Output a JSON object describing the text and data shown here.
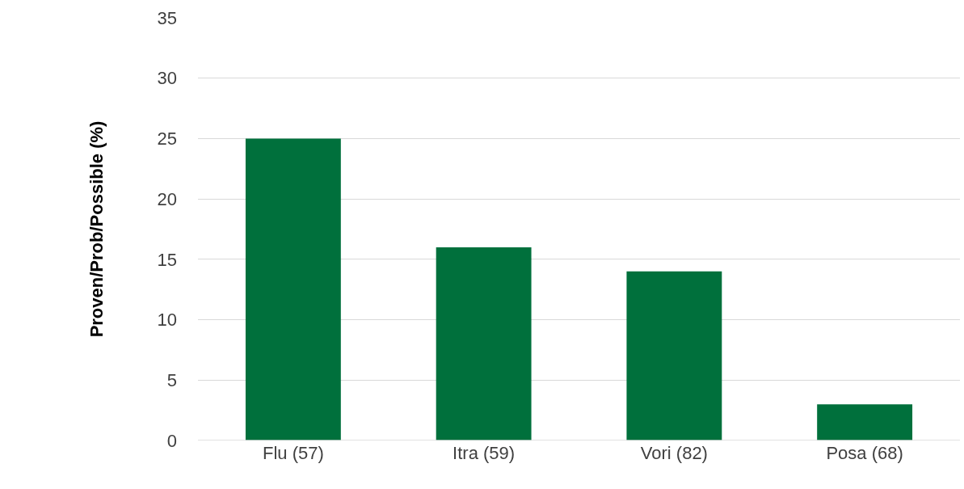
{
  "chart_data": {
    "type": "bar",
    "ylabel": "Proven/Prob/Possible (%)",
    "categories": [
      "Flu (57)",
      "Itra (59)",
      "Vori (82)",
      "Posa (68)"
    ],
    "values": [
      25,
      16,
      14,
      3
    ],
    "color": "#00703c",
    "ylim": [
      0,
      35
    ],
    "yticks": [
      0,
      5,
      10,
      15,
      20,
      25,
      30,
      35
    ],
    "grid": "y",
    "legend": false
  }
}
